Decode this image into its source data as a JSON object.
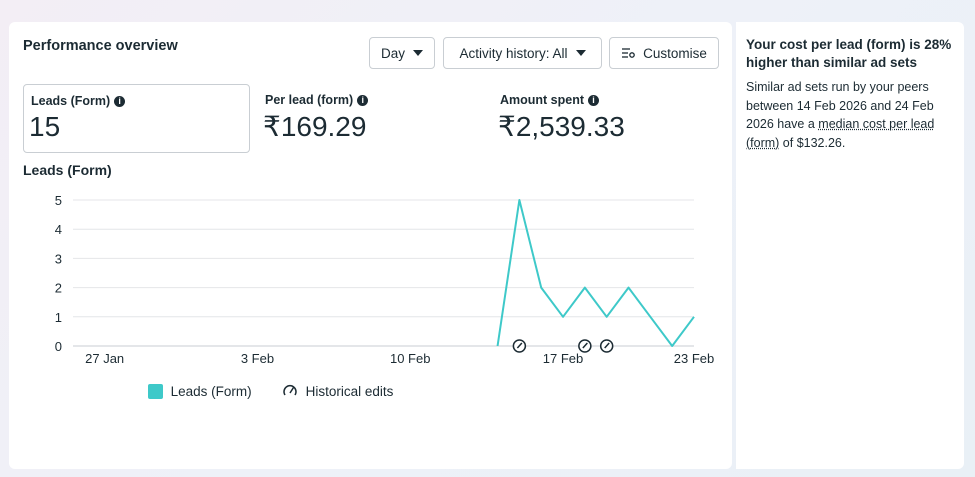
{
  "panel": {
    "title": "Performance overview",
    "day_button": "Day",
    "activity_button": "Activity history: All",
    "customise_button": "Customise"
  },
  "metrics": [
    {
      "label": "Leads (Form)",
      "value": "15"
    },
    {
      "label": "Per lead (form)",
      "value": "₹169.29"
    },
    {
      "label": "Amount spent",
      "value": "₹2,539.33"
    }
  ],
  "chart_title": "Leads (Form)",
  "chart_data": {
    "type": "line",
    "xtick_labels": [
      "27 Jan",
      "3 Feb",
      "10 Feb",
      "17 Feb",
      "23 Feb"
    ],
    "xtick_days": [
      0,
      7,
      14,
      21,
      27
    ],
    "ylim": [
      0,
      5
    ],
    "yticks": [
      0,
      1,
      2,
      3,
      4,
      5
    ],
    "series": [
      {
        "name": "Leads (Form)",
        "color": "#3ec9c9",
        "points": [
          {
            "day": 18,
            "value": 0
          },
          {
            "day": 19,
            "value": 5
          },
          {
            "day": 20,
            "value": 2
          },
          {
            "day": 21,
            "value": 1
          },
          {
            "day": 22,
            "value": 2
          },
          {
            "day": 23,
            "value": 1
          },
          {
            "day": 24,
            "value": 2
          },
          {
            "day": 25,
            "value": 1
          },
          {
            "day": 26,
            "value": 0
          },
          {
            "day": 27,
            "value": 1
          }
        ]
      }
    ],
    "historical_edit_days": [
      19,
      22,
      23
    ],
    "grid": true
  },
  "legend": {
    "leads_label": "Leads (Form)",
    "leads_color": "#3ec9c9",
    "edits_label": "Historical edits",
    "edits_icon": "gauge-edit-icon"
  },
  "side": {
    "title": "Your cost per lead (form) is 28% higher than similar ad sets",
    "body_pre": "Similar ad sets run by your peers between 14 Feb 2026 and 24 Feb 2026 have a ",
    "body_link": "median cost per lead (form)",
    "body_post": " of $132.26."
  }
}
